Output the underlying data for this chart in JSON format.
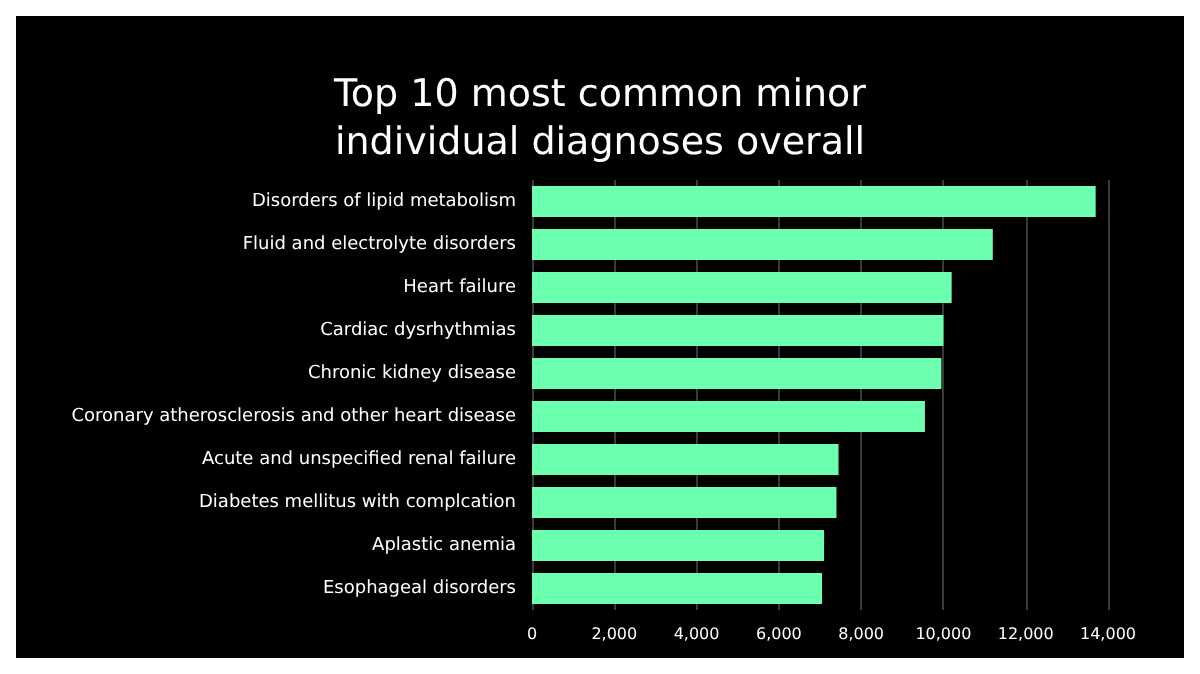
{
  "chart_data": {
    "type": "bar",
    "orientation": "horizontal",
    "title": "Top 10 most common minor\nindividual diagnoses overall",
    "categories": [
      "Disorders of lipid metabolism",
      "Fluid and electrolyte disorders",
      "Heart failure",
      "Cardiac dysrhythmias",
      "Chronic kidney disease",
      "Coronary atherosclerosis and other heart disease",
      "Acute and unspecified renal failure",
      "Diabetes mellitus with complcation",
      "Aplastic anemia",
      "Esophageal disorders"
    ],
    "values": [
      13700,
      11200,
      10200,
      10000,
      9950,
      9550,
      7450,
      7400,
      7100,
      7050
    ],
    "color": "#6bffaf",
    "xlim": [
      0,
      14000
    ],
    "xticks": [
      0,
      {
        "value": 2000,
        "label": "2,000"
      },
      {
        "value": 4000,
        "label": "4,000"
      },
      {
        "value": 6000,
        "label": "6,000"
      },
      {
        "value": 8000,
        "label": "8,000"
      },
      {
        "value": 10000,
        "label": "10,000"
      },
      {
        "value": 12000,
        "label": "12,000"
      },
      {
        "value": 14000,
        "label": "14,000"
      }
    ],
    "grid": "x"
  }
}
